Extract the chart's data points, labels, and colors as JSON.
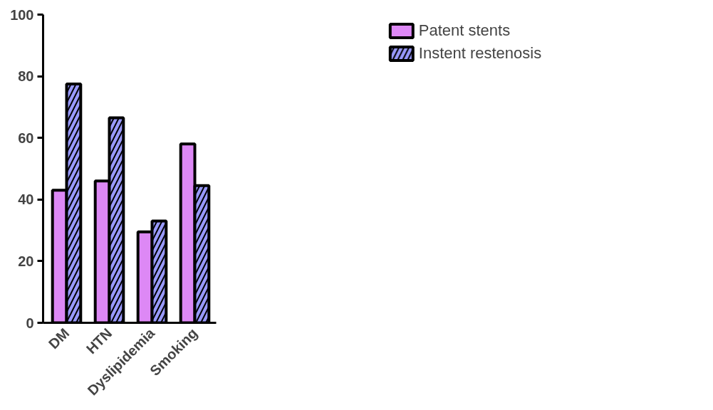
{
  "chart_data": {
    "type": "bar",
    "categories": [
      "DM",
      "HTN",
      "Dyslipidemia",
      "Smoking"
    ],
    "series": [
      {
        "name": "Patent stents",
        "color": "#dd88f5",
        "values": [
          43,
          46,
          29.5,
          58
        ]
      },
      {
        "name": "Instent restenosis",
        "color": "#9999ff",
        "values": [
          77.5,
          66.5,
          33,
          44.5
        ]
      }
    ],
    "ylim": [
      0,
      100
    ],
    "yticks": [
      0,
      20,
      40,
      60,
      80,
      100
    ],
    "grid": false,
    "legend": "top right"
  }
}
